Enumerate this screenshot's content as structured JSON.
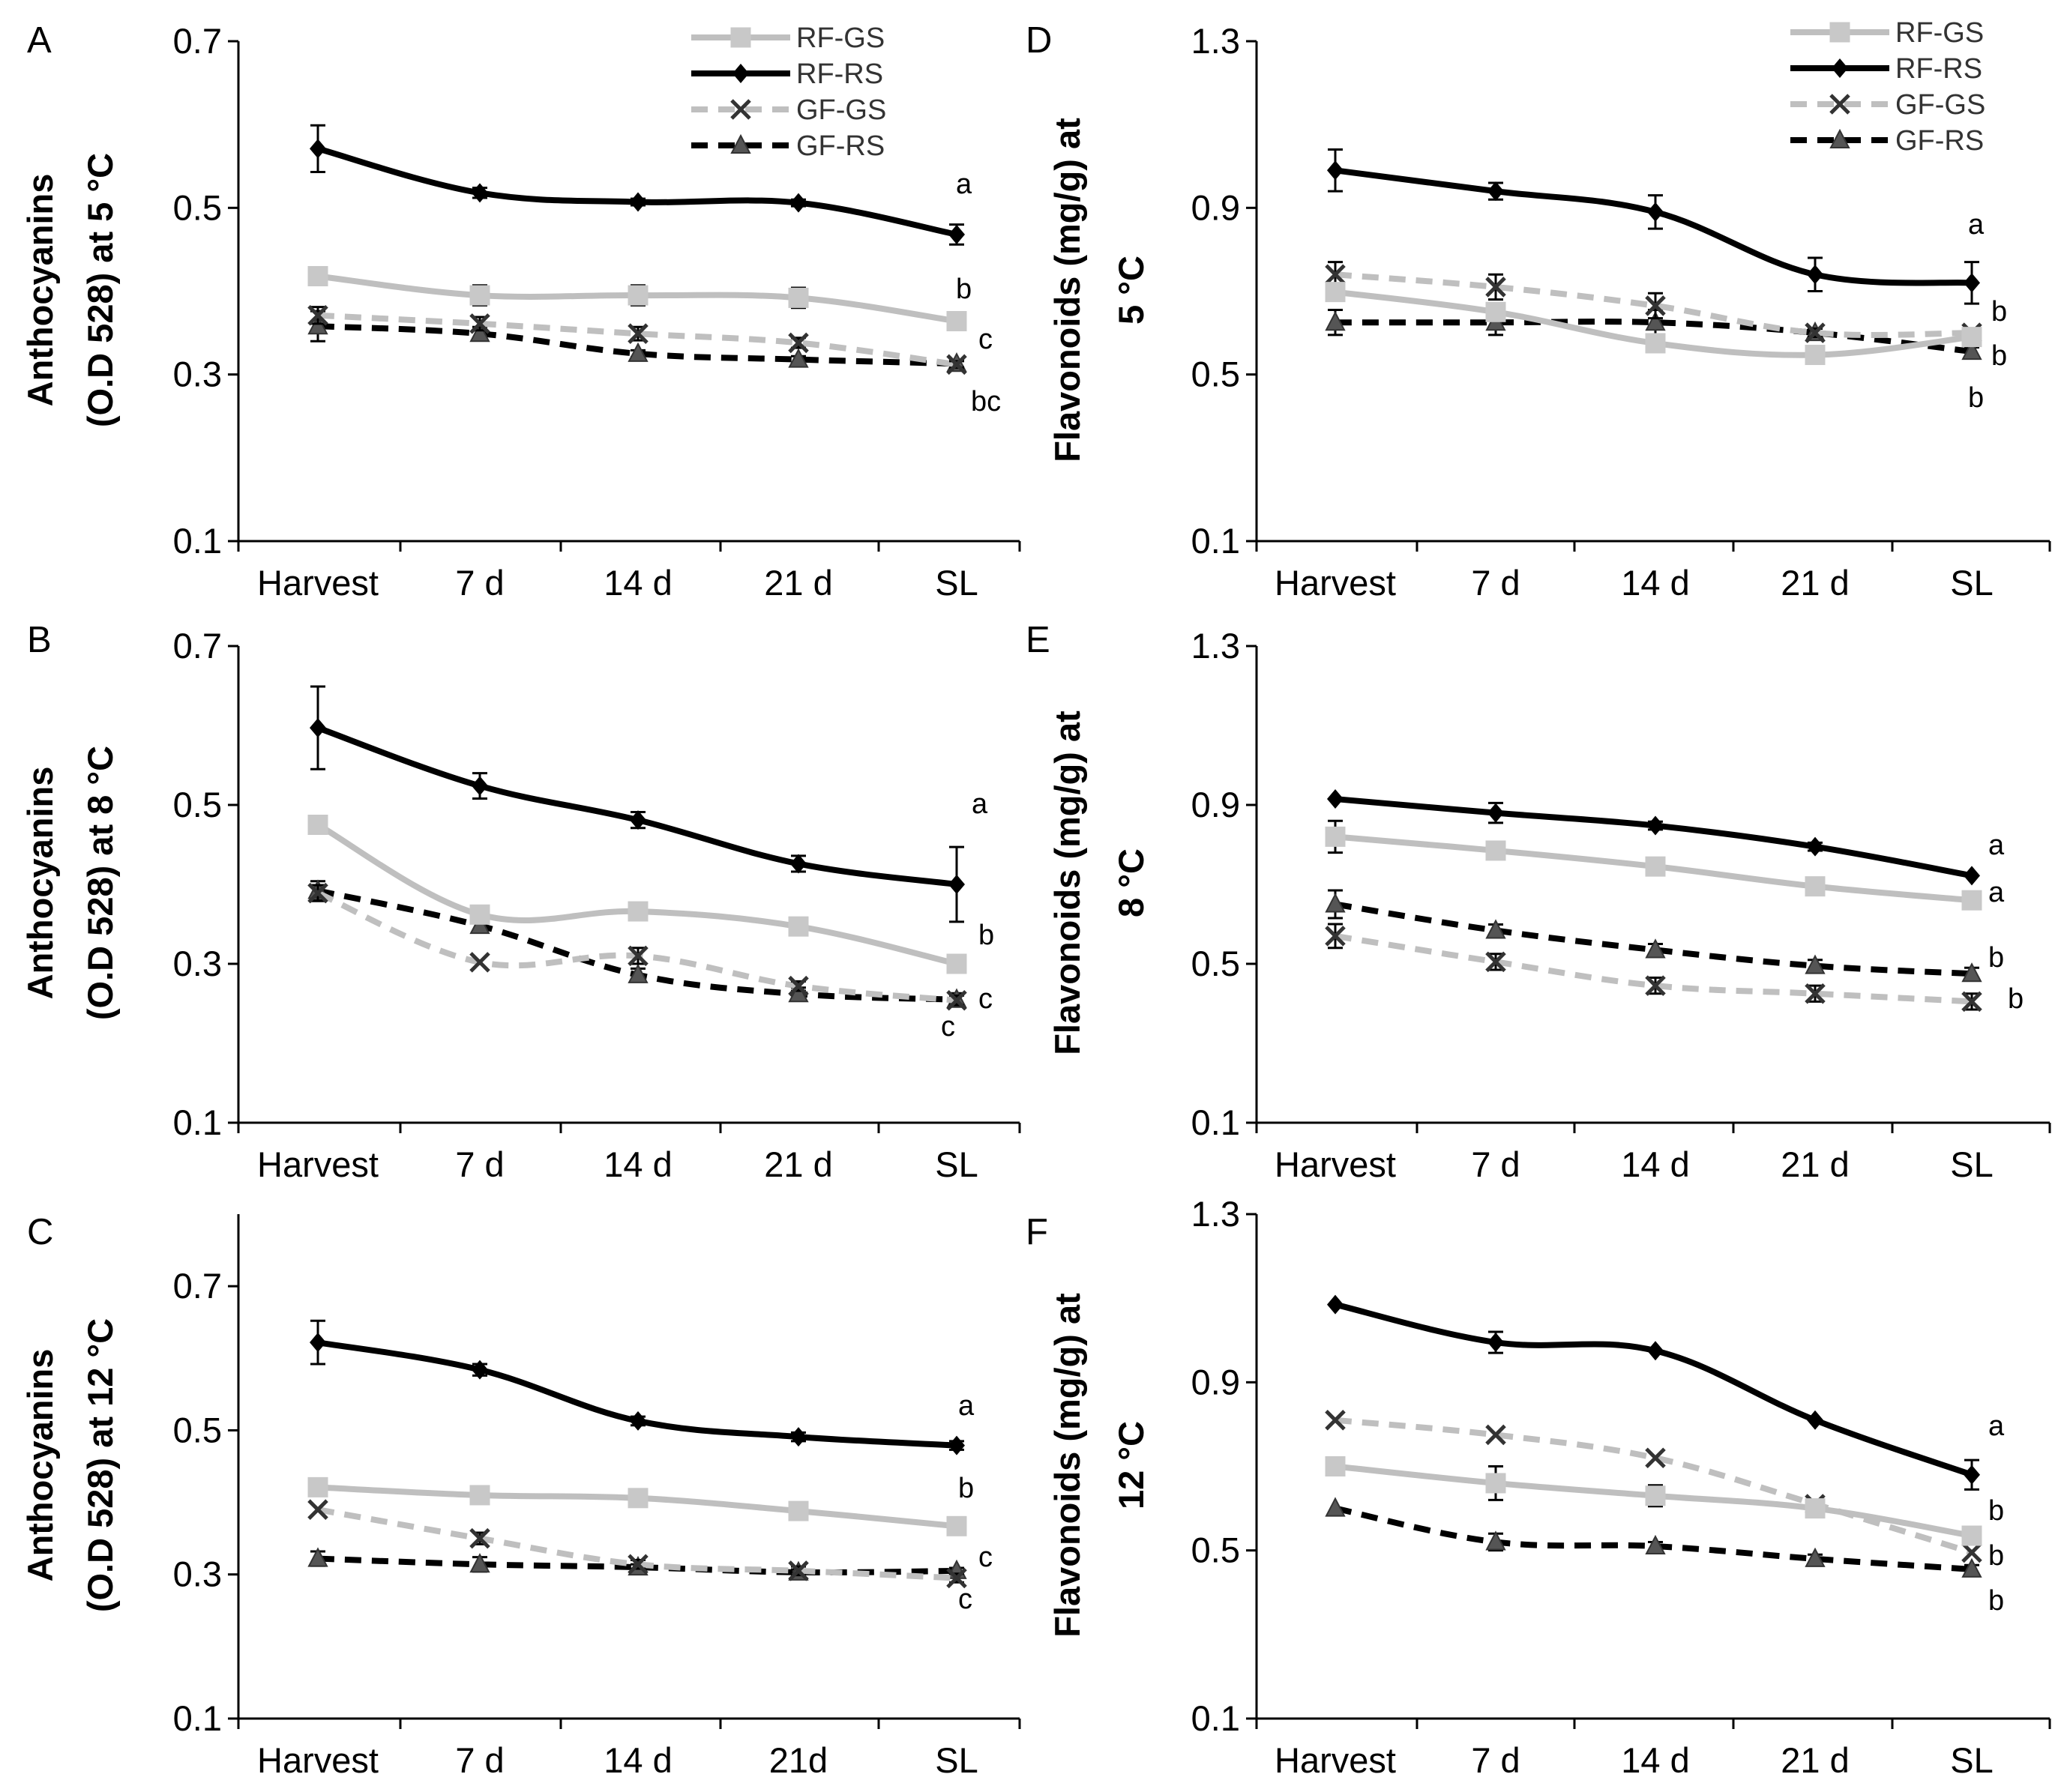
{
  "figure_title": "",
  "legend": [
    {
      "name": "RF-GS",
      "color": "#bfbfbf",
      "dash": "solid",
      "marker": "square"
    },
    {
      "name": "RF-RS",
      "color": "#000000",
      "dash": "solid",
      "marker": "diamond"
    },
    {
      "name": "GF-GS",
      "color": "#bfbfbf",
      "dash": "dashed",
      "marker": "x"
    },
    {
      "name": "GF-RS",
      "color": "#000000",
      "dash": "dashed",
      "marker": "triangle"
    }
  ],
  "chart_data": [
    {
      "panel": "A",
      "type": "line",
      "title": "",
      "xlabel": "",
      "ylabel": [
        "Anthocyanins",
        "(O.D 528) at 5 °C"
      ],
      "categories": [
        "Harvest",
        "7 d",
        "14 d",
        "21 d",
        "SL"
      ],
      "ylim": [
        0.1,
        0.7
      ],
      "yticks": [
        "0.1",
        "0.3",
        "0.5",
        "0.7"
      ],
      "show_legend": true,
      "series": [
        {
          "name": "RF-GS",
          "values": [
            0.418,
            0.395,
            0.395,
            0.392,
            0.364
          ],
          "errors": [
            0,
            0.012,
            0.012,
            0.012,
            0
          ]
        },
        {
          "name": "RF-RS",
          "values": [
            0.571,
            0.518,
            0.507,
            0.506,
            0.468
          ],
          "errors": [
            0.028,
            0.006,
            0.004,
            0.004,
            0.012
          ]
        },
        {
          "name": "GF-GS",
          "values": [
            0.371,
            0.361,
            0.349,
            0.338,
            0.312
          ],
          "errors": [
            0.01,
            0.008,
            0.008,
            0.006,
            0.004
          ]
        },
        {
          "name": "GF-RS",
          "values": [
            0.358,
            0.349,
            0.325,
            0.318,
            0.313
          ],
          "errors": [
            0.018,
            0.008,
            0.004,
            0.004,
            0.004
          ]
        }
      ],
      "annotations": [
        "a",
        "b",
        "c",
        "bc"
      ]
    },
    {
      "panel": "B",
      "type": "line",
      "title": "",
      "xlabel": "",
      "ylabel": [
        "Anthocyanins",
        "(O.D 528) at 8 °C"
      ],
      "categories": [
        "Harvest",
        "7 d",
        "14 d",
        "21 d",
        "SL"
      ],
      "ylim": [
        0.1,
        0.7
      ],
      "yticks": [
        "0.1",
        "0.3",
        "0.5",
        "0.7"
      ],
      "show_legend": false,
      "series": [
        {
          "name": "RF-GS",
          "values": [
            0.475,
            0.362,
            0.366,
            0.347,
            0.3
          ],
          "errors": [
            0,
            0,
            0.01,
            0.01,
            0
          ]
        },
        {
          "name": "RF-RS",
          "values": [
            0.597,
            0.524,
            0.481,
            0.426,
            0.4
          ],
          "errors": [
            0.052,
            0.016,
            0.01,
            0.01,
            0.047
          ]
        },
        {
          "name": "GF-GS",
          "values": [
            0.389,
            0.302,
            0.31,
            0.272,
            0.254
          ],
          "errors": [
            0.01,
            0,
            0.01,
            0.006,
            0.006
          ]
        },
        {
          "name": "GF-RS",
          "values": [
            0.392,
            0.348,
            0.286,
            0.262,
            0.255
          ],
          "errors": [
            0.012,
            0.008,
            0.008,
            0.008,
            0.008
          ]
        }
      ],
      "annotations": [
        "a",
        "b",
        "c",
        "c"
      ]
    },
    {
      "panel": "C",
      "type": "line",
      "title": "",
      "xlabel": "",
      "ylabel": [
        "Anthocyanins",
        "(O.D 528) at 12 °C"
      ],
      "categories": [
        "Harvest",
        "7 d",
        "14 d",
        "21d",
        "SL"
      ],
      "ylim": [
        0.1,
        0.8
      ],
      "yticks": [
        "0.1",
        "0.3",
        "0.5",
        "0.7"
      ],
      "show_legend": false,
      "series": [
        {
          "name": "RF-GS",
          "values": [
            0.421,
            0.41,
            0.406,
            0.388,
            0.367
          ],
          "errors": [
            0,
            0,
            0.008,
            0.012,
            0
          ]
        },
        {
          "name": "RF-RS",
          "values": [
            0.622,
            0.584,
            0.513,
            0.491,
            0.479
          ],
          "errors": [
            0.03,
            0.008,
            0.006,
            0.006,
            0.006
          ]
        },
        {
          "name": "GF-GS",
          "values": [
            0.39,
            0.35,
            0.314,
            0.305,
            0.295
          ],
          "errors": [
            0,
            0.008,
            0.006,
            0.006,
            0.006
          ]
        },
        {
          "name": "GF-RS",
          "values": [
            0.322,
            0.314,
            0.31,
            0.303,
            0.305
          ],
          "errors": [
            0.01,
            0.01,
            0.004,
            0.004,
            0.004
          ]
        }
      ],
      "annotations": [
        "a",
        "b",
        "c",
        "c"
      ]
    },
    {
      "panel": "D",
      "type": "line",
      "title": "",
      "xlabel": "",
      "ylabel": [
        "Flavonoids (mg/g) at",
        "5 °C"
      ],
      "categories": [
        "Harvest",
        "7 d",
        "14 d",
        "21 d",
        "SL"
      ],
      "ylim": [
        0.1,
        1.3
      ],
      "yticks": [
        "0.1",
        "0.5",
        "0.9",
        "1.3"
      ],
      "show_legend": true,
      "series": [
        {
          "name": "RF-GS",
          "values": [
            0.698,
            0.65,
            0.575,
            0.547,
            0.59
          ],
          "errors": [
            0,
            0,
            0,
            0,
            0
          ]
        },
        {
          "name": "RF-RS",
          "values": [
            0.99,
            0.94,
            0.89,
            0.74,
            0.72
          ],
          "errors": [
            0.05,
            0.02,
            0.04,
            0.04,
            0.05
          ]
        },
        {
          "name": "GF-GS",
          "values": [
            0.74,
            0.71,
            0.665,
            0.6,
            0.6
          ],
          "errors": [
            0.03,
            0.03,
            0.03,
            0.01,
            0.01
          ]
        },
        {
          "name": "GF-RS",
          "values": [
            0.625,
            0.625,
            0.625,
            0.6,
            0.555
          ],
          "errors": [
            0.03,
            0.03,
            0.03,
            0.01,
            0.01
          ]
        }
      ],
      "annotations": [
        "a",
        "b",
        "b",
        "b"
      ]
    },
    {
      "panel": "E",
      "type": "line",
      "title": "",
      "xlabel": "",
      "ylabel": [
        "Flavonoids (mg/g) at",
        "8 °C"
      ],
      "categories": [
        "Harvest",
        "7 d",
        "14 d",
        "21 d",
        "SL"
      ],
      "ylim": [
        0.1,
        1.3
      ],
      "yticks": [
        "0.1",
        "0.5",
        "0.9",
        "1.3"
      ],
      "show_legend": false,
      "series": [
        {
          "name": "RF-GS",
          "values": [
            0.82,
            0.785,
            0.745,
            0.695,
            0.66
          ],
          "errors": [
            0.04,
            0.015,
            0.015,
            0.015,
            0
          ]
        },
        {
          "name": "RF-RS",
          "values": [
            0.915,
            0.88,
            0.848,
            0.795,
            0.722
          ],
          "errors": [
            0,
            0.025,
            0.01,
            0.01,
            0
          ]
        },
        {
          "name": "GF-GS",
          "values": [
            0.57,
            0.505,
            0.445,
            0.425,
            0.405
          ],
          "errors": [
            0.03,
            0.02,
            0.02,
            0.02,
            0.02
          ]
        },
        {
          "name": "GF-RS",
          "values": [
            0.65,
            0.584,
            0.535,
            0.495,
            0.475
          ],
          "errors": [
            0.035,
            0.015,
            0.015,
            0.015,
            0.015
          ]
        }
      ],
      "annotations": [
        "a",
        "a",
        "b",
        "b"
      ]
    },
    {
      "panel": "F",
      "type": "line",
      "title": "",
      "xlabel": "",
      "ylabel": [
        "Flavonoids (mg/g) at",
        "12 °C"
      ],
      "categories": [
        "Harvest",
        "7 d",
        "14 d",
        "21 d",
        "SL"
      ],
      "ylim": [
        0.1,
        1.3
      ],
      "yticks": [
        "0.1",
        "0.5",
        "0.9",
        "1.3"
      ],
      "show_legend": false,
      "series": [
        {
          "name": "RF-GS",
          "values": [
            0.7,
            0.66,
            0.63,
            0.6,
            0.535
          ],
          "errors": [
            0,
            0.04,
            0.025,
            0.01,
            0
          ]
        },
        {
          "name": "RF-RS",
          "values": [
            1.085,
            0.995,
            0.975,
            0.81,
            0.68
          ],
          "errors": [
            0,
            0.025,
            0,
            0,
            0.035
          ]
        },
        {
          "name": "GF-GS",
          "values": [
            0.81,
            0.775,
            0.72,
            0.61,
            0.495
          ],
          "errors": [
            0,
            0,
            0,
            0,
            0
          ]
        },
        {
          "name": "GF-RS",
          "values": [
            0.6,
            0.52,
            0.51,
            0.48,
            0.455
          ],
          "errors": [
            0,
            0.02,
            0.01,
            0.01,
            0.01
          ]
        }
      ],
      "annotations": [
        "a",
        "b",
        "b",
        "b"
      ]
    }
  ]
}
